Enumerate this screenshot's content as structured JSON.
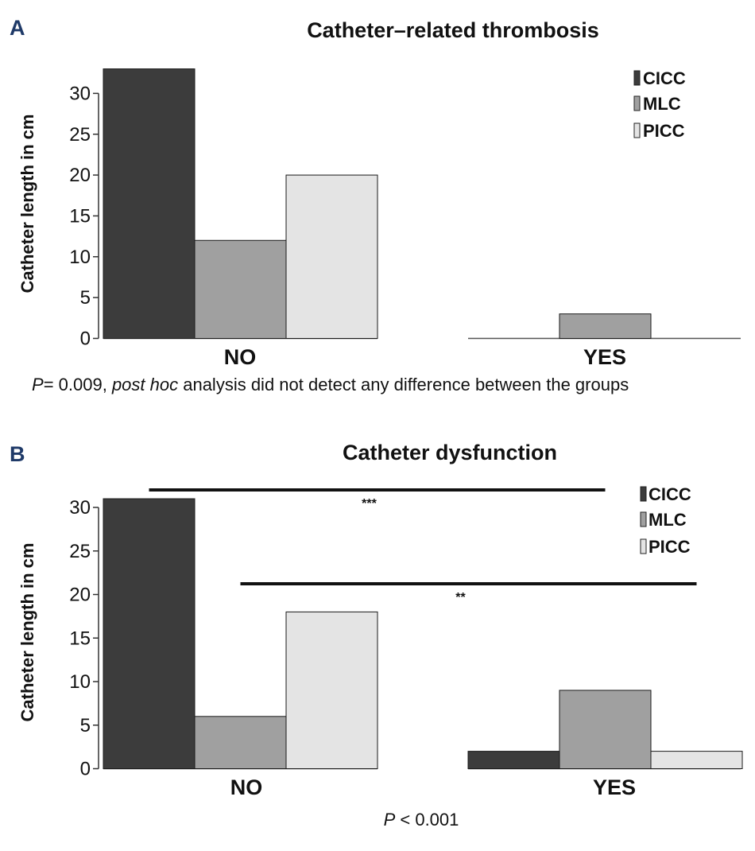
{
  "chart_data": [
    {
      "type": "bar",
      "panel": "A",
      "title": "Catheter–related thrombosis",
      "xlabel": "",
      "ylabel": "Catheter length in cm",
      "ylim": [
        0,
        33
      ],
      "yticks": [
        "0",
        "5",
        "10",
        "15",
        "20",
        "25",
        "30"
      ],
      "categories": [
        "NO",
        "YES"
      ],
      "series": [
        {
          "name": "CICC",
          "color": "#3c3c3c",
          "values": [
            33,
            0
          ]
        },
        {
          "name": "MLC",
          "color": "#a0a0a0",
          "values": [
            12,
            3
          ]
        },
        {
          "name": "PICC",
          "color": "#e4e4e4",
          "values": [
            20,
            0
          ]
        }
      ],
      "legend_position": "top-right",
      "note": {
        "p_label": "P",
        "p_value": "= 0.009, ",
        "italic": "post hoc",
        "rest": " analysis did not detect any difference between the groups"
      },
      "significance": []
    },
    {
      "type": "bar",
      "panel": "B",
      "title": "Catheter dysfunction",
      "xlabel": "",
      "ylabel": "Catheter length in cm",
      "ylim": [
        0,
        31
      ],
      "yticks": [
        "0",
        "5",
        "10",
        "15",
        "20",
        "25",
        "30"
      ],
      "categories": [
        "NO",
        "YES"
      ],
      "series": [
        {
          "name": "CICC",
          "color": "#3c3c3c",
          "values": [
            31,
            2
          ]
        },
        {
          "name": "MLC",
          "color": "#a0a0a0",
          "values": [
            6,
            9
          ]
        },
        {
          "name": "PICC",
          "color": "#e4e4e4",
          "values": [
            18,
            2
          ]
        }
      ],
      "legend_position": "top-right",
      "note": {
        "p_label": "P",
        "p_value": " < 0.001",
        "italic": "",
        "rest": ""
      },
      "significance": [
        {
          "label": "***",
          "from": [
            "NO",
            "CICC"
          ],
          "to": [
            "YES",
            "MLC"
          ]
        },
        {
          "label": "**",
          "from": [
            "NO",
            "MLC"
          ],
          "to": [
            "YES",
            "PICC"
          ]
        }
      ]
    }
  ]
}
